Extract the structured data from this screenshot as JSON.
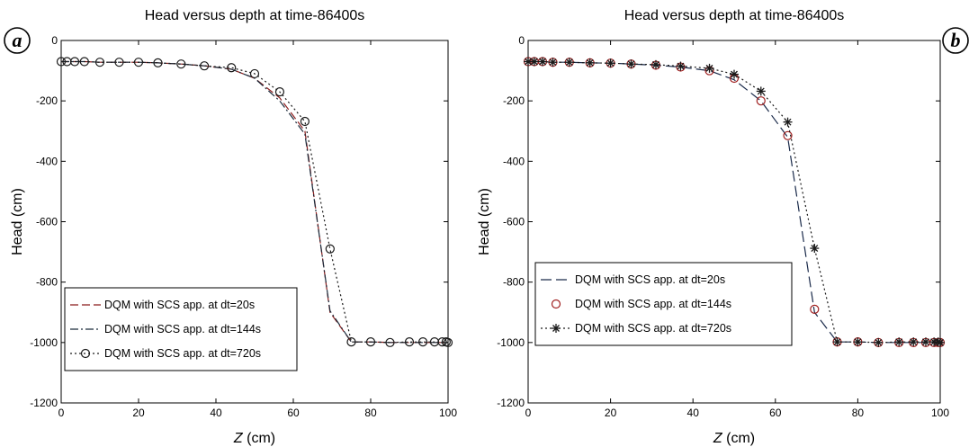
{
  "chart_data": [
    {
      "type": "line",
      "panel_label": "a",
      "title": "Head versus depth at time-86400s",
      "xlabel_var": "Z",
      "xlabel_unit": " (cm)",
      "ylabel": "Head (cm)",
      "xlim": [
        0,
        100
      ],
      "ylim": [
        -1200,
        0
      ],
      "xticks": [
        0,
        20,
        40,
        60,
        80,
        100
      ],
      "yticks": [
        0,
        -200,
        -400,
        -600,
        -800,
        -1000,
        -1200
      ],
      "grid": false,
      "legend_position": "bottom-left",
      "series": [
        {
          "name": "DQM with SCS app. at dt=20s",
          "color": "#8b1c1c",
          "dash": "dash",
          "marker": "none",
          "x": [
            0,
            1.5,
            3.5,
            6,
            10,
            15,
            20,
            25,
            31,
            37,
            44,
            50,
            56.5,
            63,
            69.5,
            75,
            80,
            85,
            90,
            93.5,
            96.5,
            98.5,
            99.5,
            100
          ],
          "y": [
            -70,
            -70,
            -70,
            -70,
            -72,
            -72,
            -72,
            -74,
            -78,
            -84,
            -95,
            -125,
            -190,
            -300,
            -900,
            -998,
            -998,
            -1000,
            -1000,
            -1000,
            -1000,
            -1000,
            -1000,
            -1000
          ]
        },
        {
          "name": "DQM with SCS app. at dt=144s",
          "color": "#1a2a3a",
          "dash": "dashdot",
          "marker": "none",
          "x": [
            0,
            1.5,
            3.5,
            6,
            10,
            15,
            20,
            25,
            31,
            37,
            44,
            50,
            56.5,
            63,
            69.5,
            75,
            80,
            85,
            90,
            93.5,
            96.5,
            98.5,
            99.5,
            100
          ],
          "y": [
            -70,
            -70,
            -70,
            -70,
            -72,
            -72,
            -72,
            -74,
            -78,
            -84,
            -95,
            -125,
            -200,
            -310,
            -895,
            -998,
            -998,
            -1000,
            -1000,
            -1000,
            -1000,
            -1000,
            -1000,
            -1000
          ]
        },
        {
          "name": "DQM with SCS app. at dt=720s",
          "color": "#1a1a1a",
          "dash": "dot",
          "marker": "circle",
          "x": [
            0,
            1.5,
            3.5,
            6,
            10,
            15,
            20,
            25,
            31,
            37,
            44,
            50,
            56.5,
            63,
            69.5,
            75,
            80,
            85,
            90,
            93.5,
            96.5,
            98.5,
            99.5,
            100
          ],
          "y": [
            -70,
            -70,
            -70,
            -70,
            -72,
            -72,
            -72,
            -74,
            -78,
            -84,
            -90,
            -110,
            -170,
            -268,
            -690,
            -998,
            -998,
            -1000,
            -998,
            -998,
            -998,
            -998,
            -998,
            -1000
          ]
        }
      ]
    },
    {
      "type": "line",
      "panel_label": "b",
      "title": "Head versus depth at time-86400s",
      "xlabel_var": "Z",
      "xlabel_unit": " (cm)",
      "ylabel": "Head (cm)",
      "xlim": [
        0,
        100
      ],
      "ylim": [
        -1200,
        0
      ],
      "xticks": [
        0,
        20,
        40,
        60,
        80,
        100
      ],
      "yticks": [
        0,
        -200,
        -400,
        -600,
        -800,
        -1000,
        -1200
      ],
      "grid": false,
      "legend_position": "bottom-left",
      "series": [
        {
          "name": "DQM with SCS app. at dt=20s",
          "color": "#1a2a4a",
          "dash": "longdash",
          "marker": "none",
          "x": [
            0,
            1.5,
            3.5,
            6,
            10,
            15,
            20,
            25,
            31,
            37,
            44,
            50,
            56.5,
            63,
            69.5,
            75,
            80,
            85,
            90,
            93.5,
            96.5,
            98.5,
            99.5,
            100
          ],
          "y": [
            -70,
            -70,
            -70,
            -72,
            -72,
            -74,
            -75,
            -78,
            -82,
            -88,
            -100,
            -130,
            -200,
            -320,
            -900,
            -998,
            -998,
            -1000,
            -1000,
            -1000,
            -1000,
            -1000,
            -1000,
            -1000
          ]
        },
        {
          "name": "DQM with SCS app. at dt=144s",
          "color": "#a02020",
          "dash": "none",
          "marker": "circle",
          "x": [
            0,
            1.5,
            3.5,
            6,
            10,
            15,
            20,
            25,
            31,
            37,
            44,
            50,
            56.5,
            63,
            69.5,
            75,
            80,
            85,
            90,
            93.5,
            96.5,
            98.5,
            99.5,
            100
          ],
          "y": [
            -70,
            -70,
            -70,
            -72,
            -72,
            -74,
            -75,
            -78,
            -82,
            -88,
            -100,
            -125,
            -200,
            -315,
            -890,
            -998,
            -998,
            -1000,
            -1000,
            -1000,
            -1000,
            -1000,
            -1000,
            -1000
          ]
        },
        {
          "name": "DQM with SCS app. at dt=720s",
          "color": "#1a1a1a",
          "dash": "dot",
          "marker": "star",
          "x": [
            0,
            1.5,
            3.5,
            6,
            10,
            15,
            20,
            25,
            31,
            37,
            44,
            50,
            56.5,
            63,
            69.5,
            75,
            80,
            85,
            90,
            93.5,
            96.5,
            98.5,
            99.5,
            100
          ],
          "y": [
            -70,
            -70,
            -70,
            -72,
            -72,
            -74,
            -75,
            -78,
            -80,
            -85,
            -92,
            -112,
            -168,
            -270,
            -688,
            -998,
            -998,
            -1000,
            -998,
            -998,
            -998,
            -998,
            -998,
            -1000
          ]
        }
      ]
    }
  ]
}
